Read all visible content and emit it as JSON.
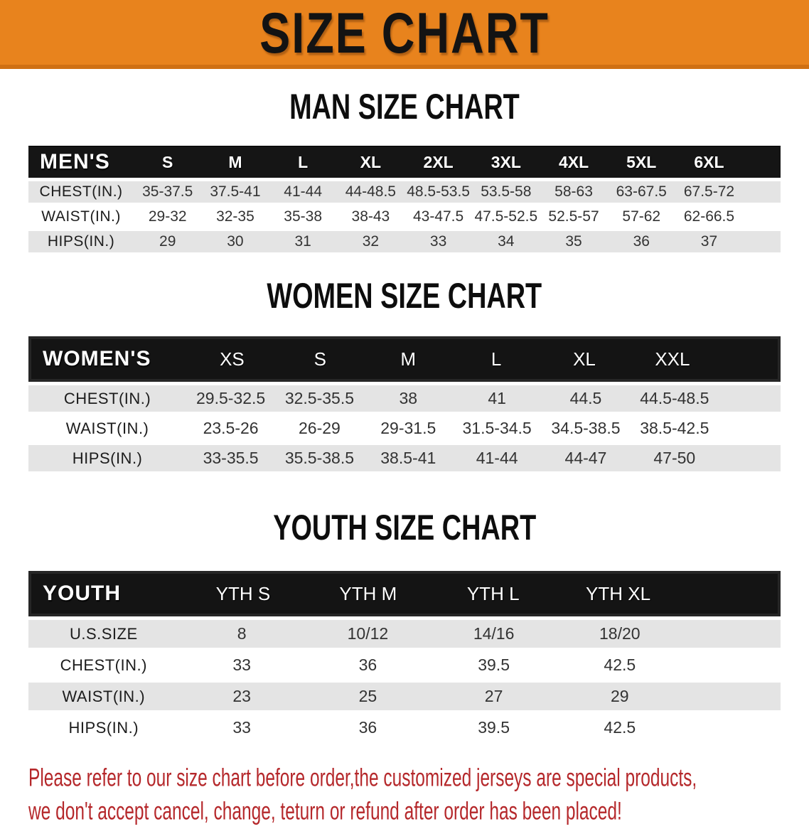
{
  "banner": {
    "title": "SIZE CHART"
  },
  "colors": {
    "banner_orange": "#e8831d",
    "table_header_black": "#151515",
    "row_gray": "#e4e4e4",
    "footer_red": "#b5282b"
  },
  "sections": [
    {
      "id": "men",
      "heading": "MAN SIZE CHART",
      "corner": "MEN'S",
      "sizes": [
        "S",
        "M",
        "L",
        "XL",
        "2XL",
        "3XL",
        "4XL",
        "5XL",
        "6XL"
      ],
      "rows": [
        {
          "label": "CHEST(IN.)",
          "values": [
            "35-37.5",
            "37.5-41",
            "41-44",
            "44-48.5",
            "48.5-53.5",
            "53.5-58",
            "58-63",
            "63-67.5",
            "67.5-72"
          ]
        },
        {
          "label": "WAIST(IN.)",
          "values": [
            "29-32",
            "32-35",
            "35-38",
            "38-43",
            "43-47.5",
            "47.5-52.5",
            "52.5-57",
            "57-62",
            "62-66.5"
          ]
        },
        {
          "label": "HIPS(IN.)",
          "values": [
            "29",
            "30",
            "31",
            "32",
            "33",
            "34",
            "35",
            "36",
            "37"
          ]
        }
      ]
    },
    {
      "id": "women",
      "heading": "WOMEN SIZE CHART",
      "corner": "WOMEN'S",
      "sizes": [
        "XS",
        "S",
        "M",
        "L",
        "XL",
        "XXL"
      ],
      "rows": [
        {
          "label": "CHEST(IN.)",
          "values": [
            "29.5-32.5",
            "32.5-35.5",
            "38",
            "41",
            "44.5",
            "44.5-48.5"
          ]
        },
        {
          "label": "WAIST(IN.)",
          "values": [
            "23.5-26",
            "26-29",
            "29-31.5",
            "31.5-34.5",
            "34.5-38.5",
            "38.5-42.5"
          ]
        },
        {
          "label": "HIPS(IN.)",
          "values": [
            "33-35.5",
            "35.5-38.5",
            "38.5-41",
            "41-44",
            "44-47",
            "47-50"
          ]
        }
      ]
    },
    {
      "id": "youth",
      "heading": "YOUTH SIZE CHART",
      "corner": "YOUTH",
      "sizes": [
        "YTH S",
        "YTH M",
        "YTH L",
        "YTH XL"
      ],
      "rows": [
        {
          "label": "U.S.SIZE",
          "values": [
            "8",
            "10/12",
            "14/16",
            "18/20"
          ]
        },
        {
          "label": "CHEST(IN.)",
          "values": [
            "33",
            "36",
            "39.5",
            "42.5"
          ]
        },
        {
          "label": "WAIST(IN.)",
          "values": [
            "23",
            "25",
            "27",
            "29"
          ]
        },
        {
          "label": "HIPS(IN.)",
          "values": [
            "33",
            "36",
            "39.5",
            "42.5"
          ]
        }
      ]
    }
  ],
  "footer": {
    "line1": "Please refer to our size chart before order,the customized jerseys are special products,",
    "line2": "we don't accept cancel, change, teturn or refund after order has been placed!"
  }
}
